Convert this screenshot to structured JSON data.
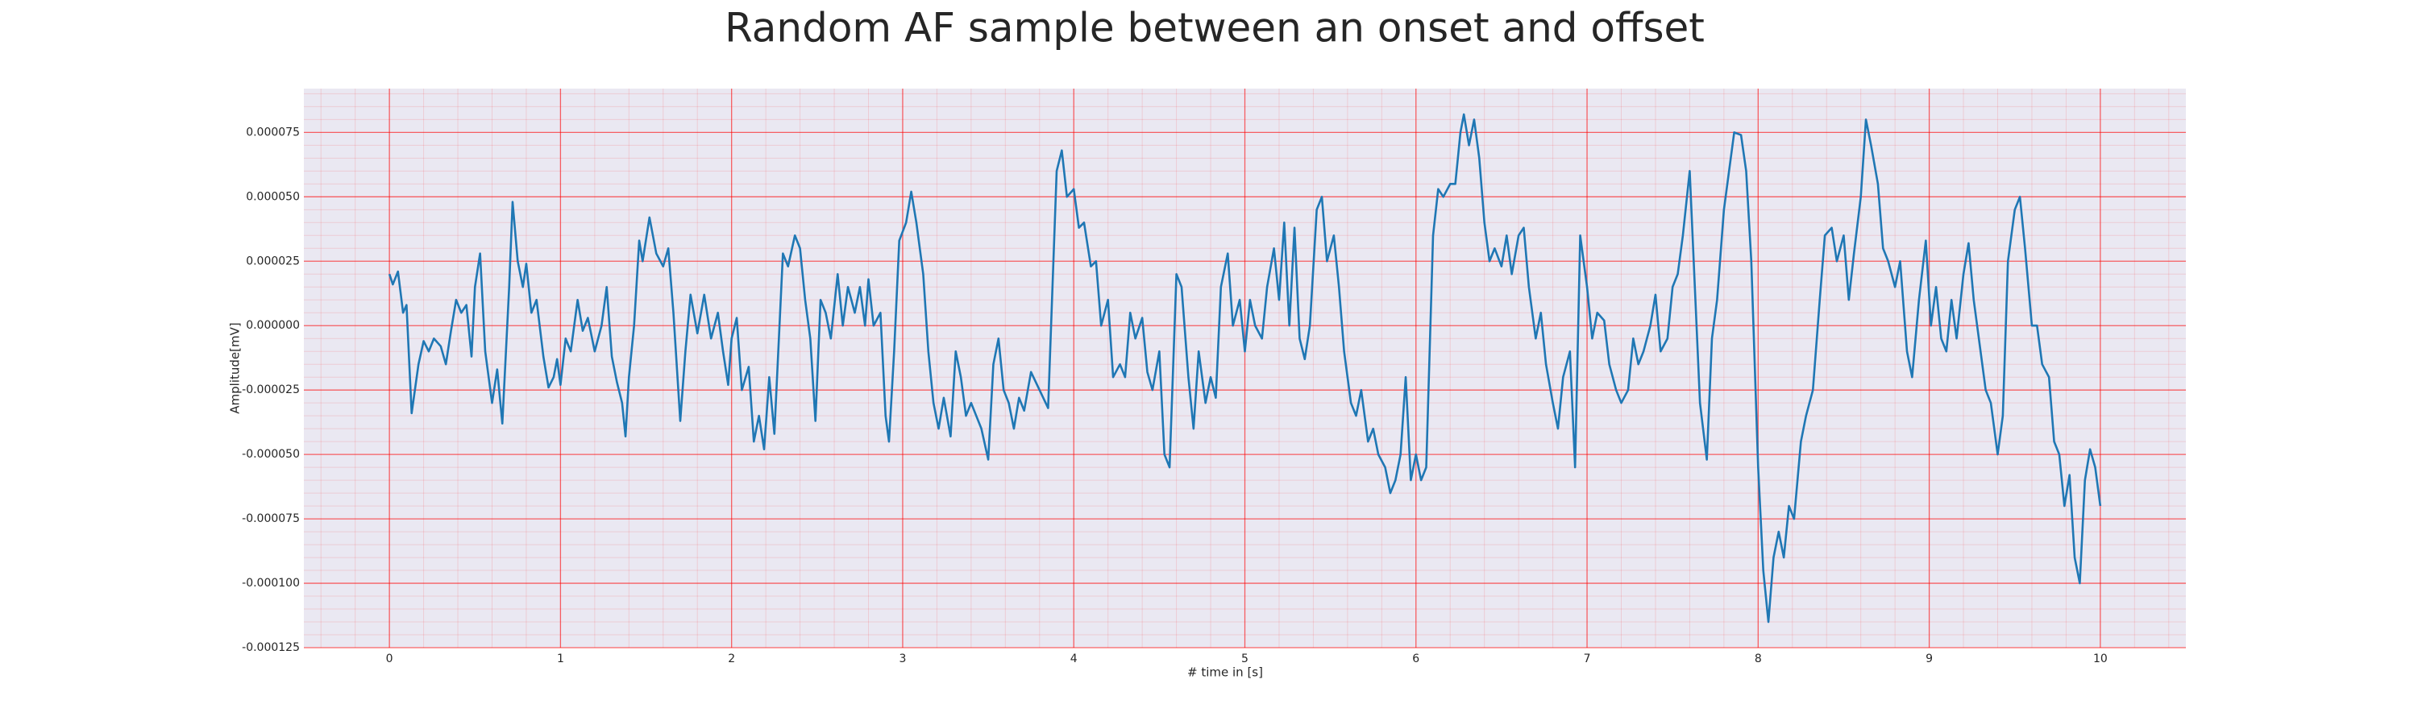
{
  "chart_data": {
    "type": "line",
    "title": "Random AF sample between an onset and offset",
    "x_label": "# time in [s]",
    "y_label": "Amplitude[mV]",
    "color": "#1f77b4",
    "background": "#eae8f2",
    "grid": true,
    "grid_color": "#ff0000",
    "minor_grid": true,
    "xlim": [
      -0.5,
      10.5
    ],
    "xticks": [
      0,
      1,
      2,
      3,
      4,
      5,
      6,
      7,
      8,
      9,
      10
    ],
    "ylim": [
      -0.000125,
      9.2e-05
    ],
    "yticks": [
      {
        "value": -0.000125,
        "label": "-0.000125"
      },
      {
        "value": -0.0001,
        "label": "-0.000100"
      },
      {
        "value": -7.5e-05,
        "label": "-0.000075"
      },
      {
        "value": -5e-05,
        "label": "-0.000050"
      },
      {
        "value": -2.5e-05,
        "label": "-0.000025"
      },
      {
        "value": 0,
        "label": "0.000000"
      },
      {
        "value": 2.5e-05,
        "label": "0.000025"
      },
      {
        "value": 5e-05,
        "label": "0.000050"
      },
      {
        "value": 7.5e-05,
        "label": "0.000075"
      }
    ],
    "x": [
      0,
      0.02,
      0.05,
      0.08,
      0.1,
      0.13,
      0.17,
      0.2,
      0.23,
      0.26,
      0.3,
      0.33,
      0.36,
      0.39,
      0.42,
      0.45,
      0.48,
      0.5,
      0.53,
      0.56,
      0.6,
      0.63,
      0.66,
      0.7,
      0.72,
      0.75,
      0.78,
      0.8,
      0.83,
      0.86,
      0.9,
      0.93,
      0.96,
      0.98,
      1.0,
      1.03,
      1.06,
      1.1,
      1.13,
      1.16,
      1.2,
      1.24,
      1.27,
      1.3,
      1.33,
      1.36,
      1.38,
      1.4,
      1.43,
      1.46,
      1.48,
      1.52,
      1.56,
      1.6,
      1.63,
      1.66,
      1.7,
      1.73,
      1.76,
      1.8,
      1.84,
      1.88,
      1.92,
      1.95,
      1.98,
      2.0,
      2.03,
      2.06,
      2.1,
      2.13,
      2.16,
      2.19,
      2.22,
      2.25,
      2.28,
      2.3,
      2.33,
      2.37,
      2.4,
      2.43,
      2.46,
      2.49,
      2.52,
      2.55,
      2.58,
      2.62,
      2.65,
      2.68,
      2.72,
      2.75,
      2.78,
      2.8,
      2.83,
      2.87,
      2.9,
      2.92,
      2.95,
      2.98,
      3.02,
      3.05,
      3.08,
      3.12,
      3.15,
      3.18,
      3.21,
      3.24,
      3.28,
      3.31,
      3.34,
      3.37,
      3.4,
      3.43,
      3.46,
      3.5,
      3.53,
      3.56,
      3.59,
      3.62,
      3.65,
      3.68,
      3.71,
      3.75,
      3.8,
      3.85,
      3.9,
      3.93,
      3.96,
      4.0,
      4.03,
      4.06,
      4.1,
      4.13,
      4.16,
      4.2,
      4.23,
      4.27,
      4.3,
      4.33,
      4.36,
      4.4,
      4.43,
      4.46,
      4.5,
      4.53,
      4.56,
      4.6,
      4.63,
      4.67,
      4.7,
      4.73,
      4.77,
      4.8,
      4.83,
      4.86,
      4.9,
      4.93,
      4.97,
      5.0,
      5.03,
      5.06,
      5.1,
      5.13,
      5.17,
      5.2,
      5.23,
      5.26,
      5.29,
      5.32,
      5.35,
      5.38,
      5.42,
      5.45,
      5.48,
      5.52,
      5.55,
      5.58,
      5.62,
      5.65,
      5.68,
      5.72,
      5.75,
      5.78,
      5.82,
      5.85,
      5.88,
      5.91,
      5.94,
      5.97,
      6.0,
      6.03,
      6.06,
      6.1,
      6.13,
      6.16,
      6.2,
      6.23,
      6.26,
      6.28,
      6.31,
      6.34,
      6.37,
      6.4,
      6.43,
      6.46,
      6.5,
      6.53,
      6.56,
      6.6,
      6.63,
      6.66,
      6.7,
      6.73,
      6.76,
      6.8,
      6.83,
      6.86,
      6.9,
      6.93,
      6.96,
      7.0,
      7.03,
      7.06,
      7.1,
      7.13,
      7.17,
      7.2,
      7.24,
      7.27,
      7.3,
      7.33,
      7.37,
      7.4,
      7.43,
      7.47,
      7.5,
      7.53,
      7.56,
      7.6,
      7.63,
      7.66,
      7.7,
      7.73,
      7.76,
      7.8,
      7.83,
      7.86,
      7.9,
      7.93,
      7.96,
      8.0,
      8.03,
      8.06,
      8.09,
      8.12,
      8.15,
      8.18,
      8.21,
      8.25,
      8.28,
      8.32,
      8.36,
      8.39,
      8.43,
      8.46,
      8.5,
      8.53,
      8.56,
      8.6,
      8.63,
      8.66,
      8.7,
      8.73,
      8.76,
      8.8,
      8.83,
      8.87,
      8.9,
      8.94,
      8.98,
      9.01,
      9.04,
      9.07,
      9.1,
      9.13,
      9.16,
      9.2,
      9.23,
      9.26,
      9.3,
      9.33,
      9.36,
      9.4,
      9.43,
      9.46,
      9.5,
      9.53,
      9.56,
      9.6,
      9.63,
      9.66,
      9.7,
      9.73,
      9.76,
      9.79,
      9.82,
      9.85,
      9.88,
      9.91,
      9.94,
      9.97,
      10.0
    ],
    "values": [
      2e-05,
      1.6e-05,
      2.1e-05,
      5e-06,
      8e-06,
      -3.4e-05,
      -1.5e-05,
      -6e-06,
      -1e-05,
      -5e-06,
      -8e-06,
      -1.5e-05,
      -2e-06,
      1e-05,
      5e-06,
      8e-06,
      -1.2e-05,
      1.5e-05,
      2.8e-05,
      -1e-05,
      -3e-05,
      -1.7e-05,
      -3.8e-05,
      1.5e-05,
      4.8e-05,
      2.5e-05,
      1.5e-05,
      2.4e-05,
      5e-06,
      1e-05,
      -1.2e-05,
      -2.4e-05,
      -2e-05,
      -1.3e-05,
      -2.3e-05,
      -5e-06,
      -1e-05,
      1e-05,
      -2e-06,
      3e-06,
      -1e-05,
      0,
      1.5e-05,
      -1.2e-05,
      -2.2e-05,
      -3e-05,
      -4.3e-05,
      -2e-05,
      0,
      3.3e-05,
      2.5e-05,
      4.2e-05,
      2.8e-05,
      2.3e-05,
      3e-05,
      5e-06,
      -3.7e-05,
      -1e-05,
      1.2e-05,
      -3e-06,
      1.2e-05,
      -5e-06,
      5e-06,
      -1e-05,
      -2.3e-05,
      -5e-06,
      3e-06,
      -2.5e-05,
      -1.6e-05,
      -4.5e-05,
      -3.5e-05,
      -4.8e-05,
      -2e-05,
      -4.2e-05,
      0,
      2.8e-05,
      2.3e-05,
      3.5e-05,
      3e-05,
      1e-05,
      -5e-06,
      -3.7e-05,
      1e-05,
      5e-06,
      -5e-06,
      2e-05,
      0,
      1.5e-05,
      5e-06,
      1.5e-05,
      0,
      1.8e-05,
      0,
      5e-06,
      -3.5e-05,
      -4.5e-05,
      -1e-05,
      3.3e-05,
      4e-05,
      5.2e-05,
      4e-05,
      2e-05,
      -1e-05,
      -3e-05,
      -4e-05,
      -2.8e-05,
      -4.3e-05,
      -1e-05,
      -2e-05,
      -3.5e-05,
      -3e-05,
      -3.5e-05,
      -4e-05,
      -5.2e-05,
      -1.5e-05,
      -5e-06,
      -2.5e-05,
      -3e-05,
      -4e-05,
      -2.8e-05,
      -3.3e-05,
      -1.8e-05,
      -2.5e-05,
      -3.2e-05,
      6e-05,
      6.8e-05,
      5e-05,
      5.3e-05,
      3.8e-05,
      4e-05,
      2.3e-05,
      2.5e-05,
      0,
      1e-05,
      -2e-05,
      -1.5e-05,
      -2e-05,
      5e-06,
      -5e-06,
      3e-06,
      -1.8e-05,
      -2.5e-05,
      -1e-05,
      -5e-05,
      -5.5e-05,
      2e-05,
      1.5e-05,
      -2e-05,
      -4e-05,
      -1e-05,
      -3e-05,
      -2e-05,
      -2.8e-05,
      1.5e-05,
      2.8e-05,
      0,
      1e-05,
      -1e-05,
      1e-05,
      0,
      -5e-06,
      1.5e-05,
      3e-05,
      1e-05,
      4e-05,
      0,
      3.8e-05,
      -5e-06,
      -1.3e-05,
      0,
      4.5e-05,
      5e-05,
      2.5e-05,
      3.5e-05,
      1.5e-05,
      -1e-05,
      -3e-05,
      -3.5e-05,
      -2.5e-05,
      -4.5e-05,
      -4e-05,
      -5e-05,
      -5.5e-05,
      -6.5e-05,
      -6e-05,
      -5e-05,
      -2e-05,
      -6e-05,
      -5e-05,
      -6e-05,
      -5.5e-05,
      3.5e-05,
      5.3e-05,
      5e-05,
      5.5e-05,
      5.5e-05,
      7.5e-05,
      8.2e-05,
      7e-05,
      8e-05,
      6.5e-05,
      4e-05,
      2.5e-05,
      3e-05,
      2.3e-05,
      3.5e-05,
      2e-05,
      3.5e-05,
      3.8e-05,
      1.5e-05,
      -5e-06,
      5e-06,
      -1.5e-05,
      -3e-05,
      -4e-05,
      -2e-05,
      -1e-05,
      -5.5e-05,
      3.5e-05,
      1.5e-05,
      -5e-06,
      5e-06,
      2e-06,
      -1.5e-05,
      -2.5e-05,
      -3e-05,
      -2.5e-05,
      -5e-06,
      -1.5e-05,
      -1e-05,
      0,
      1.2e-05,
      -1e-05,
      -5e-06,
      1.5e-05,
      2e-05,
      3.5e-05,
      6e-05,
      1.5e-05,
      -3e-05,
      -5.2e-05,
      -5e-06,
      1e-05,
      4.5e-05,
      6e-05,
      7.5e-05,
      7.4e-05,
      6e-05,
      2.5e-05,
      -5.5e-05,
      -9.5e-05,
      -0.000115,
      -9e-05,
      -8e-05,
      -9e-05,
      -7e-05,
      -7.5e-05,
      -4.5e-05,
      -3.5e-05,
      -2.5e-05,
      1e-05,
      3.5e-05,
      3.8e-05,
      2.5e-05,
      3.5e-05,
      1e-05,
      2.8e-05,
      5e-05,
      8e-05,
      7e-05,
      5.5e-05,
      3e-05,
      2.5e-05,
      1.5e-05,
      2.5e-05,
      -1e-05,
      -2e-05,
      1e-05,
      3.3e-05,
      0,
      1.5e-05,
      -5e-06,
      -1e-05,
      1e-05,
      -5e-06,
      2e-05,
      3.2e-05,
      1e-05,
      -1e-05,
      -2.5e-05,
      -3e-05,
      -5e-05,
      -3.5e-05,
      2.5e-05,
      4.5e-05,
      5e-05,
      3e-05,
      0,
      0,
      -1.5e-05,
      -2e-05,
      -4.5e-05,
      -5e-05,
      -7e-05,
      -5.8e-05,
      -9e-05,
      -0.0001,
      -6e-05,
      -4.8e-05,
      -5.5e-05,
      -7e-05
    ]
  }
}
